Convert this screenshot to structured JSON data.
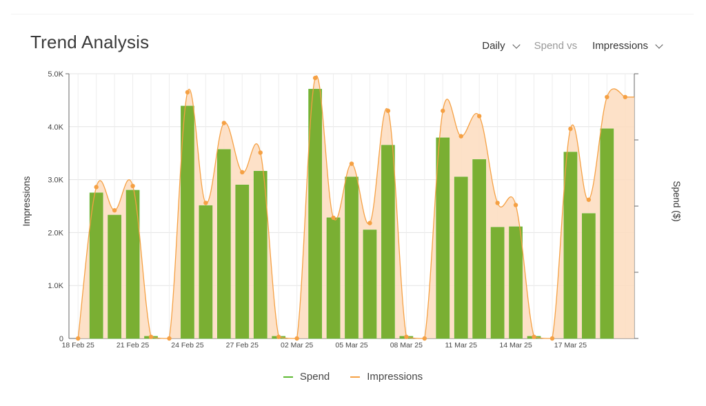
{
  "header": {
    "title": "Trend Analysis",
    "period_label": "Daily",
    "vs_label": "Spend vs",
    "metric_label": "Impressions"
  },
  "colors": {
    "bar": "#7aaf33",
    "bar_edge": "#5cb830",
    "line": "#f5a043",
    "area": "#fddcbe",
    "grid": "#e3e3e3"
  },
  "chart_data": {
    "type": "bar",
    "ylabel": "Impressions",
    "y2label": "Spend ($)",
    "ylim": [
      0,
      5000
    ],
    "y_ticks": [
      "0",
      "1.0K",
      "2.0K",
      "3.0K",
      "4.0K",
      "5.0K"
    ],
    "x_tick_labels": [
      "18 Feb 25",
      "21 Feb 25",
      "24 Feb 25",
      "27 Feb 25",
      "02 Mar 25",
      "05 Mar 25",
      "08 Mar 25",
      "11 Mar 25",
      "14 Mar 25",
      "17 Mar 25"
    ],
    "categories": [
      "18 Feb 25",
      "19 Feb 25",
      "20 Feb 25",
      "21 Feb 25",
      "22 Feb 25",
      "23 Feb 25",
      "24 Feb 25",
      "25 Feb 25",
      "26 Feb 25",
      "27 Feb 25",
      "28 Feb 25",
      "01 Mar 25",
      "02 Mar 25",
      "03 Mar 25",
      "04 Mar 25",
      "05 Mar 25",
      "06 Mar 25",
      "07 Mar 25",
      "08 Mar 25",
      "09 Mar 25",
      "10 Mar 25",
      "11 Mar 25",
      "12 Mar 25",
      "13 Mar 25",
      "14 Mar 25",
      "15 Mar 25",
      "16 Mar 25",
      "17 Mar 25",
      "18 Mar 25",
      "19 Mar 25",
      "20 Mar 25"
    ],
    "series": [
      {
        "name": "Spend",
        "type": "bar",
        "axis": "right",
        "values": [
          0,
          2750,
          2330,
          2800,
          40,
          0,
          4390,
          2510,
          3570,
          2900,
          3160,
          40,
          0,
          4710,
          2280,
          3050,
          2050,
          3650,
          40,
          0,
          3790,
          3050,
          3380,
          2100,
          2110,
          40,
          0,
          3520,
          2360,
          3960,
          0
        ]
      },
      {
        "name": "Impressions",
        "type": "area-line",
        "axis": "left",
        "values": [
          0,
          2860,
          2420,
          2880,
          30,
          0,
          4650,
          2560,
          4070,
          3140,
          3510,
          30,
          0,
          4920,
          2280,
          3300,
          2180,
          4300,
          30,
          0,
          4300,
          3820,
          4200,
          2560,
          2520,
          30,
          0,
          3960,
          2620,
          4560,
          4560
        ]
      }
    ],
    "grid": true,
    "legend_position": "bottom"
  }
}
